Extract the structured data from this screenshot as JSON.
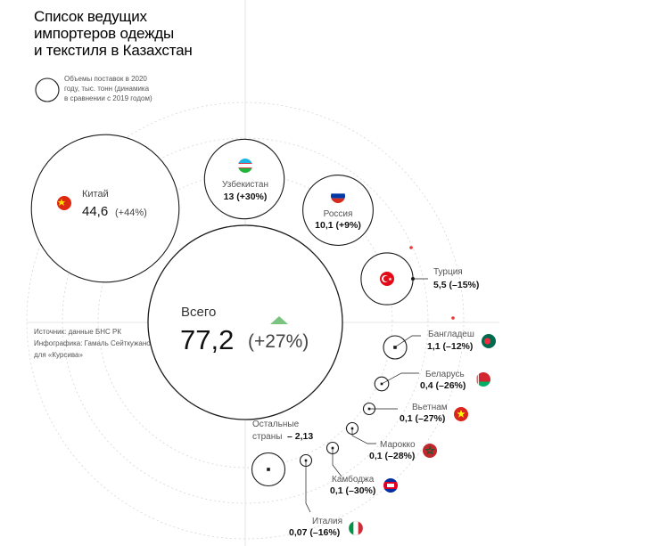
{
  "title_lines": [
    "Список ведущих",
    "импортеров одежды",
    "и текстиля в Казахстан"
  ],
  "legend_note_lines": [
    "Объемы поставок в 2020",
    "году, тыс. тонн (динамика",
    "в сравнении с 2019 годом)"
  ],
  "source_lines": [
    "Источник: данные БНС РК",
    "Инфографика: Гамаль Сейткужанов",
    "для «Курсива»"
  ],
  "colors": {
    "stroke": "#1a1a1a",
    "grid": "#d6d6d6",
    "accent_green": "#7bc47f",
    "accent_red": "#e53935"
  },
  "chart_data": {
    "type": "bubble",
    "unit": "тыс. тонн",
    "total": {
      "name": "Всего",
      "value_label": "77,2",
      "change_label": "(+27%)",
      "value": 77.2,
      "change_pct": 27
    },
    "series": [
      {
        "name": "Китай",
        "value": 44.6,
        "value_label": "44,6",
        "change_label": "(+44%)",
        "flag": "china-flag-icon"
      },
      {
        "name": "Узбекистан",
        "value": 13,
        "value_label": "13",
        "change_label": "(+30%)",
        "flag": "uzbekistan-flag-icon"
      },
      {
        "name": "Россия",
        "value": 10.1,
        "value_label": "10,1",
        "change_label": "(+9%)",
        "flag": "russia-flag-icon"
      },
      {
        "name": "Турция",
        "value": 5.5,
        "value_label": "5,5",
        "change_label": "(–15%)",
        "flag": "turkey-flag-icon"
      },
      {
        "name": "Бангладеш",
        "value": 1.1,
        "value_label": "1,1",
        "change_label": "(–12%)",
        "flag": "bangladesh-flag-icon"
      },
      {
        "name": "Беларусь",
        "value": 0.4,
        "value_label": "0,4",
        "change_label": "(–26%)",
        "flag": "belarus-flag-icon"
      },
      {
        "name": "Вьетнам",
        "value": 0.1,
        "value_label": "0,1",
        "change_label": "(–27%)",
        "flag": "vietnam-flag-icon"
      },
      {
        "name": "Марокко",
        "value": 0.1,
        "value_label": "0,1",
        "change_label": "(–28%)",
        "flag": "morocco-flag-icon"
      },
      {
        "name": "Камбоджа",
        "value": 0.1,
        "value_label": "0,1",
        "change_label": "(–30%)",
        "flag": "cambodia-flag-icon"
      },
      {
        "name": "Италия",
        "value": 0.07,
        "value_label": "0,07",
        "change_label": "(–16%)",
        "flag": "italy-flag-icon"
      }
    ],
    "others": {
      "name_lines": [
        "Остальные",
        "страны"
      ],
      "value_label": "– 2,13",
      "value": 2.13
    }
  }
}
